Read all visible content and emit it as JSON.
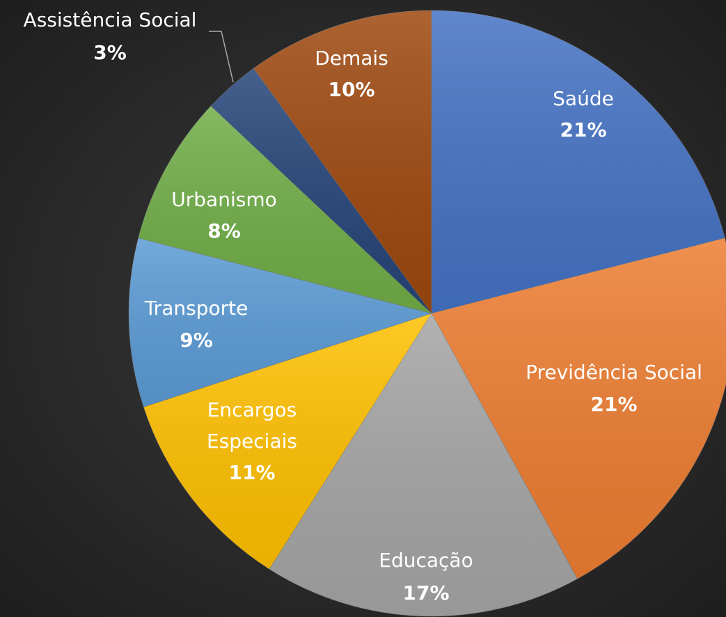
{
  "chart_data": {
    "type": "pie",
    "categories": [
      "Saúde",
      "Previdência Social",
      "Educação",
      "Encargos Especiais",
      "Transporte",
      "Urbanismo",
      "Assistência Social",
      "Demais"
    ],
    "values": [
      21,
      21,
      17,
      11,
      9,
      8,
      3,
      10
    ],
    "value_labels": [
      "21%",
      "21%",
      "17%",
      "11%",
      "9%",
      "8%",
      "3%",
      "10%"
    ],
    "colors": [
      "#4472c4",
      "#ed7d31",
      "#a5a5a5",
      "#ffc000",
      "#5b9bd5",
      "#70ad47",
      "#264478",
      "#9e480e"
    ]
  }
}
